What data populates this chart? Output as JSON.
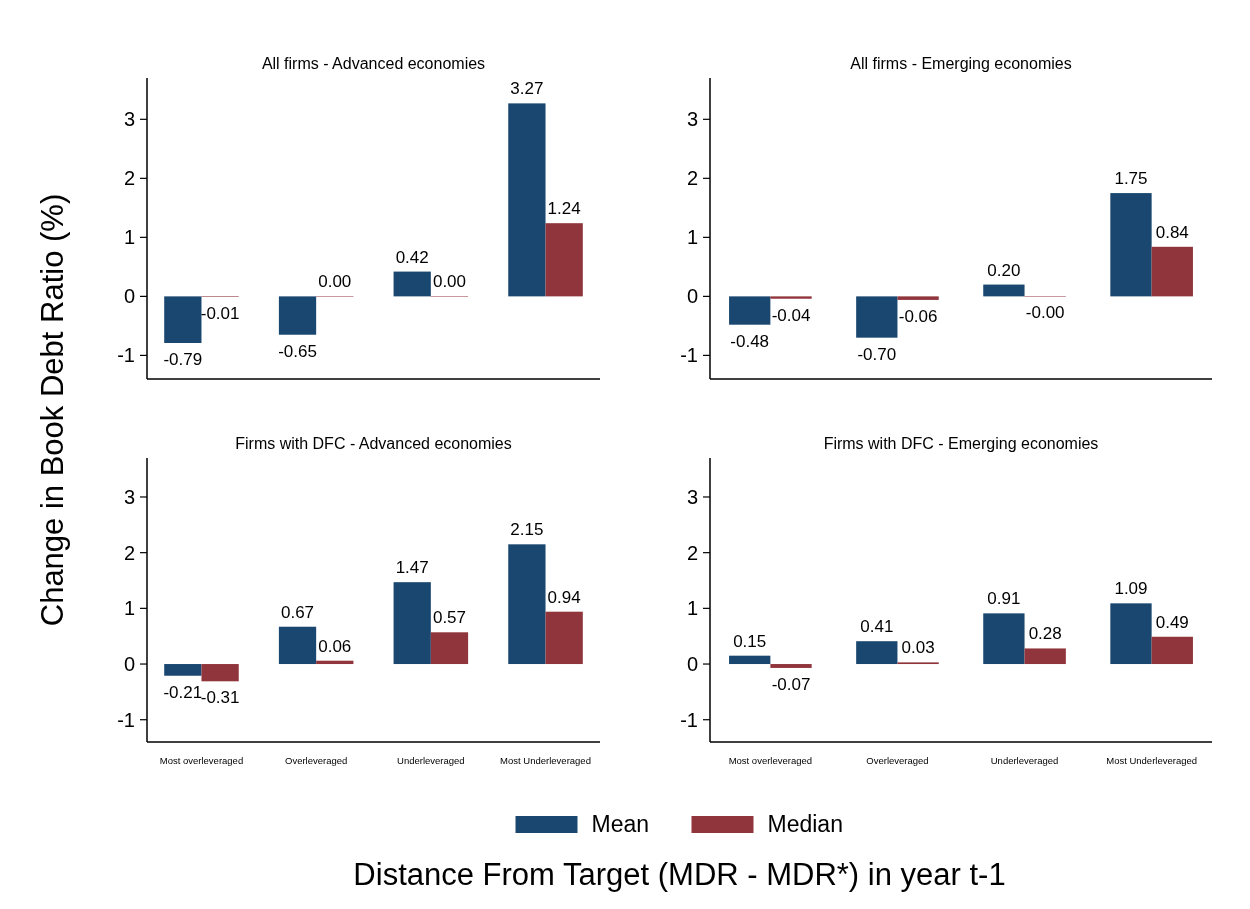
{
  "chart_data": [
    {
      "type": "bar",
      "title": "All firms - Advanced economies",
      "ylabel": "Change in Book Debt Ratio (%)",
      "xlabel": "Distance From Target (MDR - MDR*) in year t-1",
      "legend": "bottom",
      "tick_labels": "y",
      "categories": [
        null,
        null,
        null,
        null
      ],
      "ylim": [
        -1.4,
        3.7
      ],
      "yticks": [
        -1,
        0,
        1,
        2,
        3
      ],
      "series": [
        {
          "name": "Mean",
          "color": "#1a476f",
          "values": [
            -0.79,
            -0.65,
            0.42,
            3.27
          ],
          "value_labels": [
            "-0.79",
            "-0.65",
            "0.42",
            "3.27"
          ]
        },
        {
          "name": "Median",
          "color": "#90353b",
          "values": [
            -0.01,
            0.0,
            0.0,
            1.24
          ],
          "value_labels": [
            "-0.01",
            "0.00",
            "0.00",
            "1.24"
          ]
        }
      ]
    },
    {
      "type": "bar",
      "title": "All firms - Emerging economies",
      "tick_labels": "y",
      "categories": [
        null,
        null,
        null,
        null
      ],
      "ylim": [
        -1.4,
        3.7
      ],
      "yticks": [
        -1,
        0,
        1,
        2,
        3
      ],
      "series": [
        {
          "color": "#1a476f",
          "values": [
            -0.48,
            -0.7,
            0.2,
            1.75
          ],
          "value_labels": [
            "-0.48",
            "-0.70",
            "0.20",
            "1.75"
          ]
        },
        {
          "color": "#90353b",
          "values": [
            -0.04,
            -0.06,
            -0.0,
            0.84
          ],
          "value_labels": [
            "-0.04",
            "-0.06",
            "-0.00",
            "0.84"
          ]
        }
      ]
    },
    {
      "type": "bar",
      "title": "Firms with DFC - Advanced economies",
      "categories": [
        "Most overleveraged",
        "Overleveraged",
        "Underleveraged",
        "Most Underleveraged"
      ],
      "ylim": [
        -1.4,
        3.7
      ],
      "yticks": [
        -1,
        0,
        1,
        2,
        3
      ],
      "series": [
        {
          "color": "#1a476f",
          "values": [
            -0.21,
            0.67,
            1.47,
            2.15
          ],
          "value_labels": [
            "-0.21",
            "0.67",
            "1.47",
            "2.15"
          ]
        },
        {
          "color": "#90353b",
          "values": [
            -0.31,
            0.06,
            0.57,
            0.94
          ],
          "value_labels": [
            "-0.31",
            "0.06",
            "0.57",
            "0.94"
          ]
        }
      ]
    },
    {
      "type": "bar",
      "title": "Firms with DFC - Emerging economies",
      "categories": [
        "Most overleveraged",
        "Overleveraged",
        "Underleveraged",
        "Most Underleveraged"
      ],
      "ylim": [
        -1.4,
        3.7
      ],
      "yticks": [
        -1,
        0,
        1,
        2,
        3
      ],
      "series": [
        {
          "color": "#1a476f",
          "values": [
            0.15,
            0.41,
            0.91,
            1.09
          ],
          "value_labels": [
            "0.15",
            "0.41",
            "0.91",
            "1.09"
          ]
        },
        {
          "color": "#90353b",
          "values": [
            -0.07,
            0.03,
            0.28,
            0.49
          ],
          "value_labels": [
            "-0.07",
            "0.03",
            "0.28",
            "0.49"
          ]
        }
      ]
    }
  ]
}
